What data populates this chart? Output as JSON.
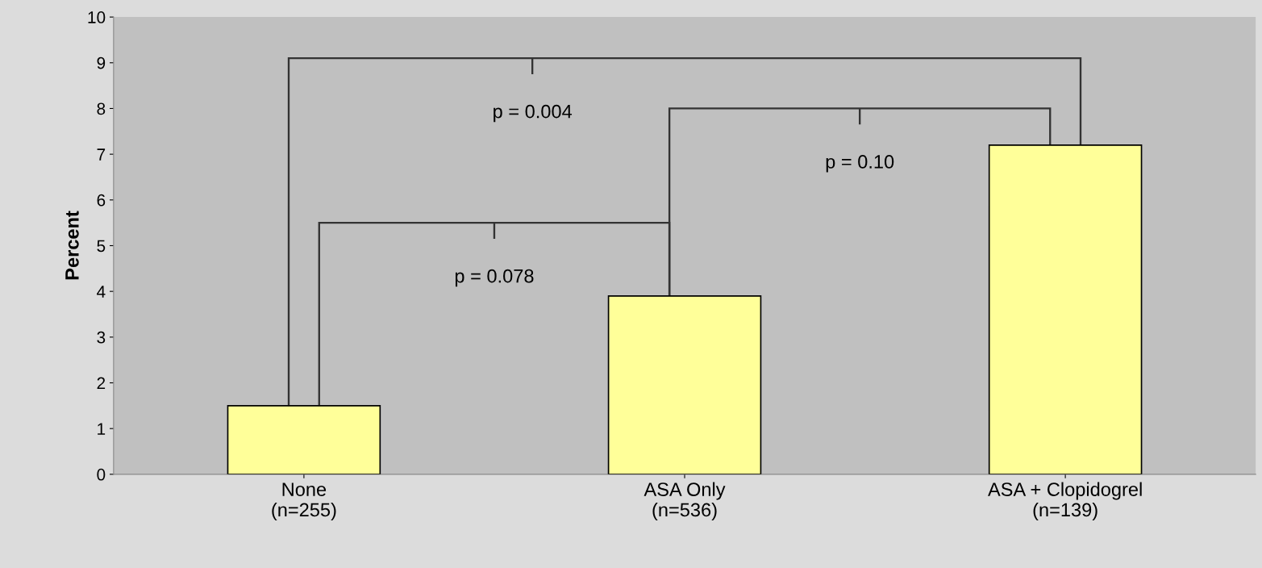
{
  "chart_data": {
    "type": "bar",
    "ylabel": "Percent",
    "categories": [
      "None\n(n=255)",
      "ASA Only\n(n=536)",
      "ASA + Clopidogrel\n(n=139)"
    ],
    "values": [
      1.5,
      3.9,
      7.2
    ],
    "color": "#ffff99",
    "ylim": [
      0,
      10
    ],
    "yticks": [
      0,
      1,
      2,
      3,
      4,
      5,
      6,
      7,
      8,
      9,
      10
    ],
    "grid": false,
    "annotations": [
      "p = 0.078",
      "p = 0.10",
      "p = 0.004"
    ]
  }
}
